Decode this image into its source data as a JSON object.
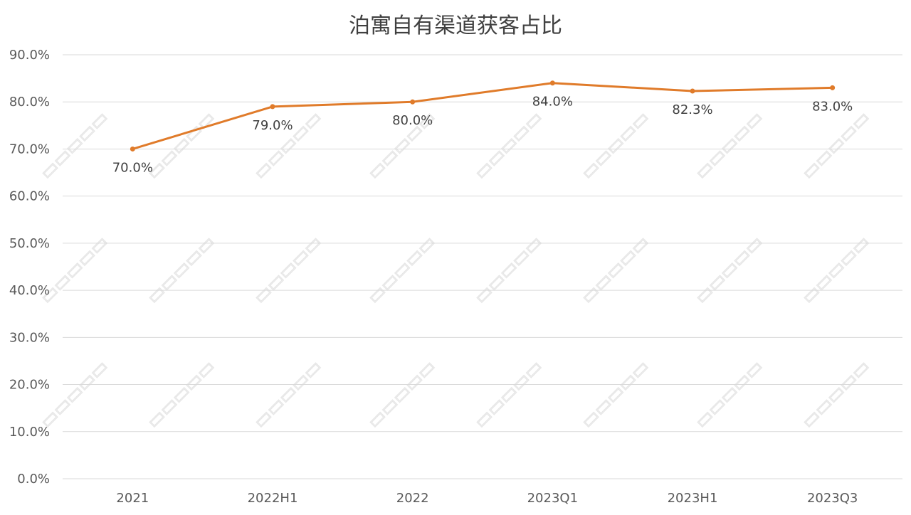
{
  "chart_data": {
    "type": "line",
    "title": "泊寓自有渠道获客占比",
    "categories": [
      "2021",
      "2022H1",
      "2022",
      "2023Q1",
      "2023H1",
      "2023Q3"
    ],
    "series": [
      {
        "values": [
          70.0,
          79.0,
          80.0,
          84.0,
          82.3,
          83.0
        ],
        "data_labels": [
          "70.0%",
          "79.0%",
          "80.0%",
          "84.0%",
          "82.3%",
          "83.0%"
        ],
        "color": "#E07B2A"
      }
    ],
    "y_ticks": [
      "0.0%",
      "10.0%",
      "20.0%",
      "30.0%",
      "40.0%",
      "50.0%",
      "60.0%",
      "70.0%",
      "80.0%",
      "90.0%"
    ],
    "ylim": [
      0,
      90
    ],
    "grid": true,
    "legend": "none"
  }
}
